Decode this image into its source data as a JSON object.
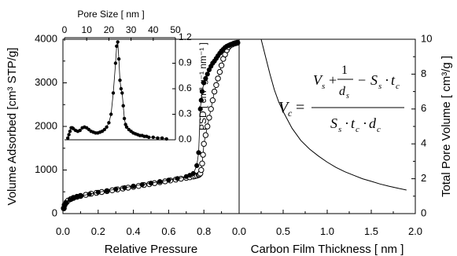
{
  "chart_data": [
    {
      "type": "scatter",
      "panel": "left",
      "xlabel": "Relative Pressure",
      "ylabel": "Volume Adsorbed [cm³ STP/g]",
      "xlim": [
        0.0,
        1.0
      ],
      "ylim": [
        0,
        4000
      ],
      "xticks": [
        "0.0",
        "0.2",
        "0.4",
        "0.6",
        "0.8"
      ],
      "yticks": [
        "0",
        "1000",
        "2000",
        "3000",
        "4000"
      ],
      "series": [
        {
          "marker": "open-circle",
          "x": [
            0.005,
            0.01,
            0.02,
            0.03,
            0.045,
            0.06,
            0.08,
            0.1,
            0.13,
            0.16,
            0.19,
            0.22,
            0.25,
            0.28,
            0.31,
            0.34,
            0.37,
            0.4,
            0.43,
            0.46,
            0.49,
            0.52,
            0.55,
            0.58,
            0.61,
            0.64,
            0.67,
            0.7,
            0.72,
            0.74,
            0.75,
            0.76,
            0.77,
            0.775,
            0.78,
            0.785,
            0.79,
            0.795,
            0.8,
            0.81,
            0.82,
            0.83,
            0.84,
            0.85,
            0.86,
            0.87,
            0.88,
            0.89,
            0.9,
            0.91,
            0.92,
            0.93,
            0.94,
            0.95,
            0.96,
            0.97,
            0.98,
            0.99
          ],
          "y": [
            120,
            200,
            260,
            300,
            335,
            360,
            385,
            405,
            430,
            455,
            475,
            495,
            515,
            535,
            555,
            575,
            595,
            615,
            635,
            655,
            675,
            700,
            720,
            740,
            760,
            780,
            800,
            820,
            835,
            850,
            860,
            870,
            885,
            900,
            920,
            1000,
            1150,
            1350,
            1600,
            1800,
            2000,
            2200,
            2400,
            2600,
            2800,
            2950,
            3100,
            3250,
            3400,
            3550,
            3650,
            3750,
            3820,
            3860,
            3880,
            3900,
            3910,
            3920
          ]
        },
        {
          "marker": "filled-circle",
          "x": [
            0.005,
            0.01,
            0.02,
            0.04,
            0.06,
            0.08,
            0.1,
            0.15,
            0.2,
            0.25,
            0.3,
            0.35,
            0.4,
            0.45,
            0.5,
            0.55,
            0.6,
            0.65,
            0.7,
            0.72,
            0.74,
            0.76,
            0.77,
            0.78,
            0.785,
            0.79,
            0.8,
            0.81,
            0.82,
            0.83,
            0.84,
            0.85,
            0.86,
            0.87,
            0.88,
            0.89,
            0.9,
            0.91,
            0.92,
            0.93,
            0.94,
            0.95,
            0.96,
            0.97,
            0.98,
            0.99
          ],
          "y": [
            110,
            190,
            250,
            320,
            360,
            385,
            405,
            445,
            490,
            525,
            560,
            595,
            630,
            665,
            700,
            735,
            770,
            805,
            850,
            880,
            920,
            1100,
            1400,
            2400,
            2600,
            2800,
            3000,
            3100,
            3200,
            3300,
            3380,
            3450,
            3500,
            3560,
            3620,
            3680,
            3730,
            3770,
            3810,
            3840,
            3860,
            3880,
            3890,
            3900,
            3910,
            3920
          ]
        }
      ]
    },
    {
      "type": "line",
      "panel": "inset",
      "xlabel": "Pore Size [ nm ]",
      "ylabel": "PSD [ cm³ g⁻¹ nm⁻¹ ]",
      "xlim": [
        0,
        50
      ],
      "ylim": [
        0.0,
        1.2
      ],
      "xticks": [
        "0",
        "10",
        "20",
        "30",
        "40",
        "50"
      ],
      "yticks": [
        "0.0",
        "0.3",
        "0.6",
        "0.9",
        "1.2"
      ],
      "marker": "filled-circle",
      "x": [
        1.5,
        2,
        2.5,
        3,
        3.5,
        4,
        5,
        6,
        7,
        8,
        9,
        10,
        11,
        12,
        13,
        14,
        15,
        16,
        17,
        18,
        19,
        20,
        21,
        22,
        23,
        23.5,
        24,
        24.5,
        25,
        25.5,
        26,
        26.5,
        27,
        27.5,
        28,
        29,
        30,
        31,
        32,
        33,
        34,
        35,
        36,
        37,
        38,
        40,
        42,
        44,
        46
      ],
      "y": [
        0.02,
        0.06,
        0.1,
        0.14,
        0.14,
        0.13,
        0.11,
        0.1,
        0.11,
        0.14,
        0.15,
        0.14,
        0.12,
        0.1,
        0.09,
        0.08,
        0.08,
        0.09,
        0.1,
        0.12,
        0.15,
        0.2,
        0.3,
        0.55,
        0.9,
        1.1,
        1.15,
        0.95,
        0.7,
        0.6,
        0.55,
        0.4,
        0.25,
        0.18,
        0.15,
        0.12,
        0.1,
        0.08,
        0.07,
        0.06,
        0.05,
        0.05,
        0.04,
        0.04,
        0.03,
        0.03,
        0.02,
        0.02,
        0.01
      ]
    },
    {
      "type": "line",
      "panel": "right",
      "xlabel": "Carbon Film Thickness [ nm ]",
      "ylabel": "Total Pore Volume [ cm³/g ]",
      "xlim": [
        0.0,
        2.0
      ],
      "ylim": [
        0,
        10
      ],
      "xticks": [
        "0.0",
        "0.5",
        "1.0",
        "1.5",
        "2.0"
      ],
      "yticks": [
        "0",
        "2",
        "4",
        "6",
        "8",
        "10"
      ],
      "x": [
        0.25,
        0.3,
        0.35,
        0.4,
        0.45,
        0.5,
        0.6,
        0.7,
        0.8,
        0.9,
        1.0,
        1.1,
        1.2,
        1.3,
        1.4,
        1.5,
        1.6,
        1.7,
        1.8,
        1.9
      ],
      "y": [
        10.0,
        9.0,
        8.0,
        7.1,
        6.4,
        5.85,
        4.9,
        4.2,
        3.7,
        3.3,
        2.95,
        2.65,
        2.4,
        2.2,
        2.0,
        1.85,
        1.7,
        1.57,
        1.46,
        1.35
      ]
    }
  ]
}
